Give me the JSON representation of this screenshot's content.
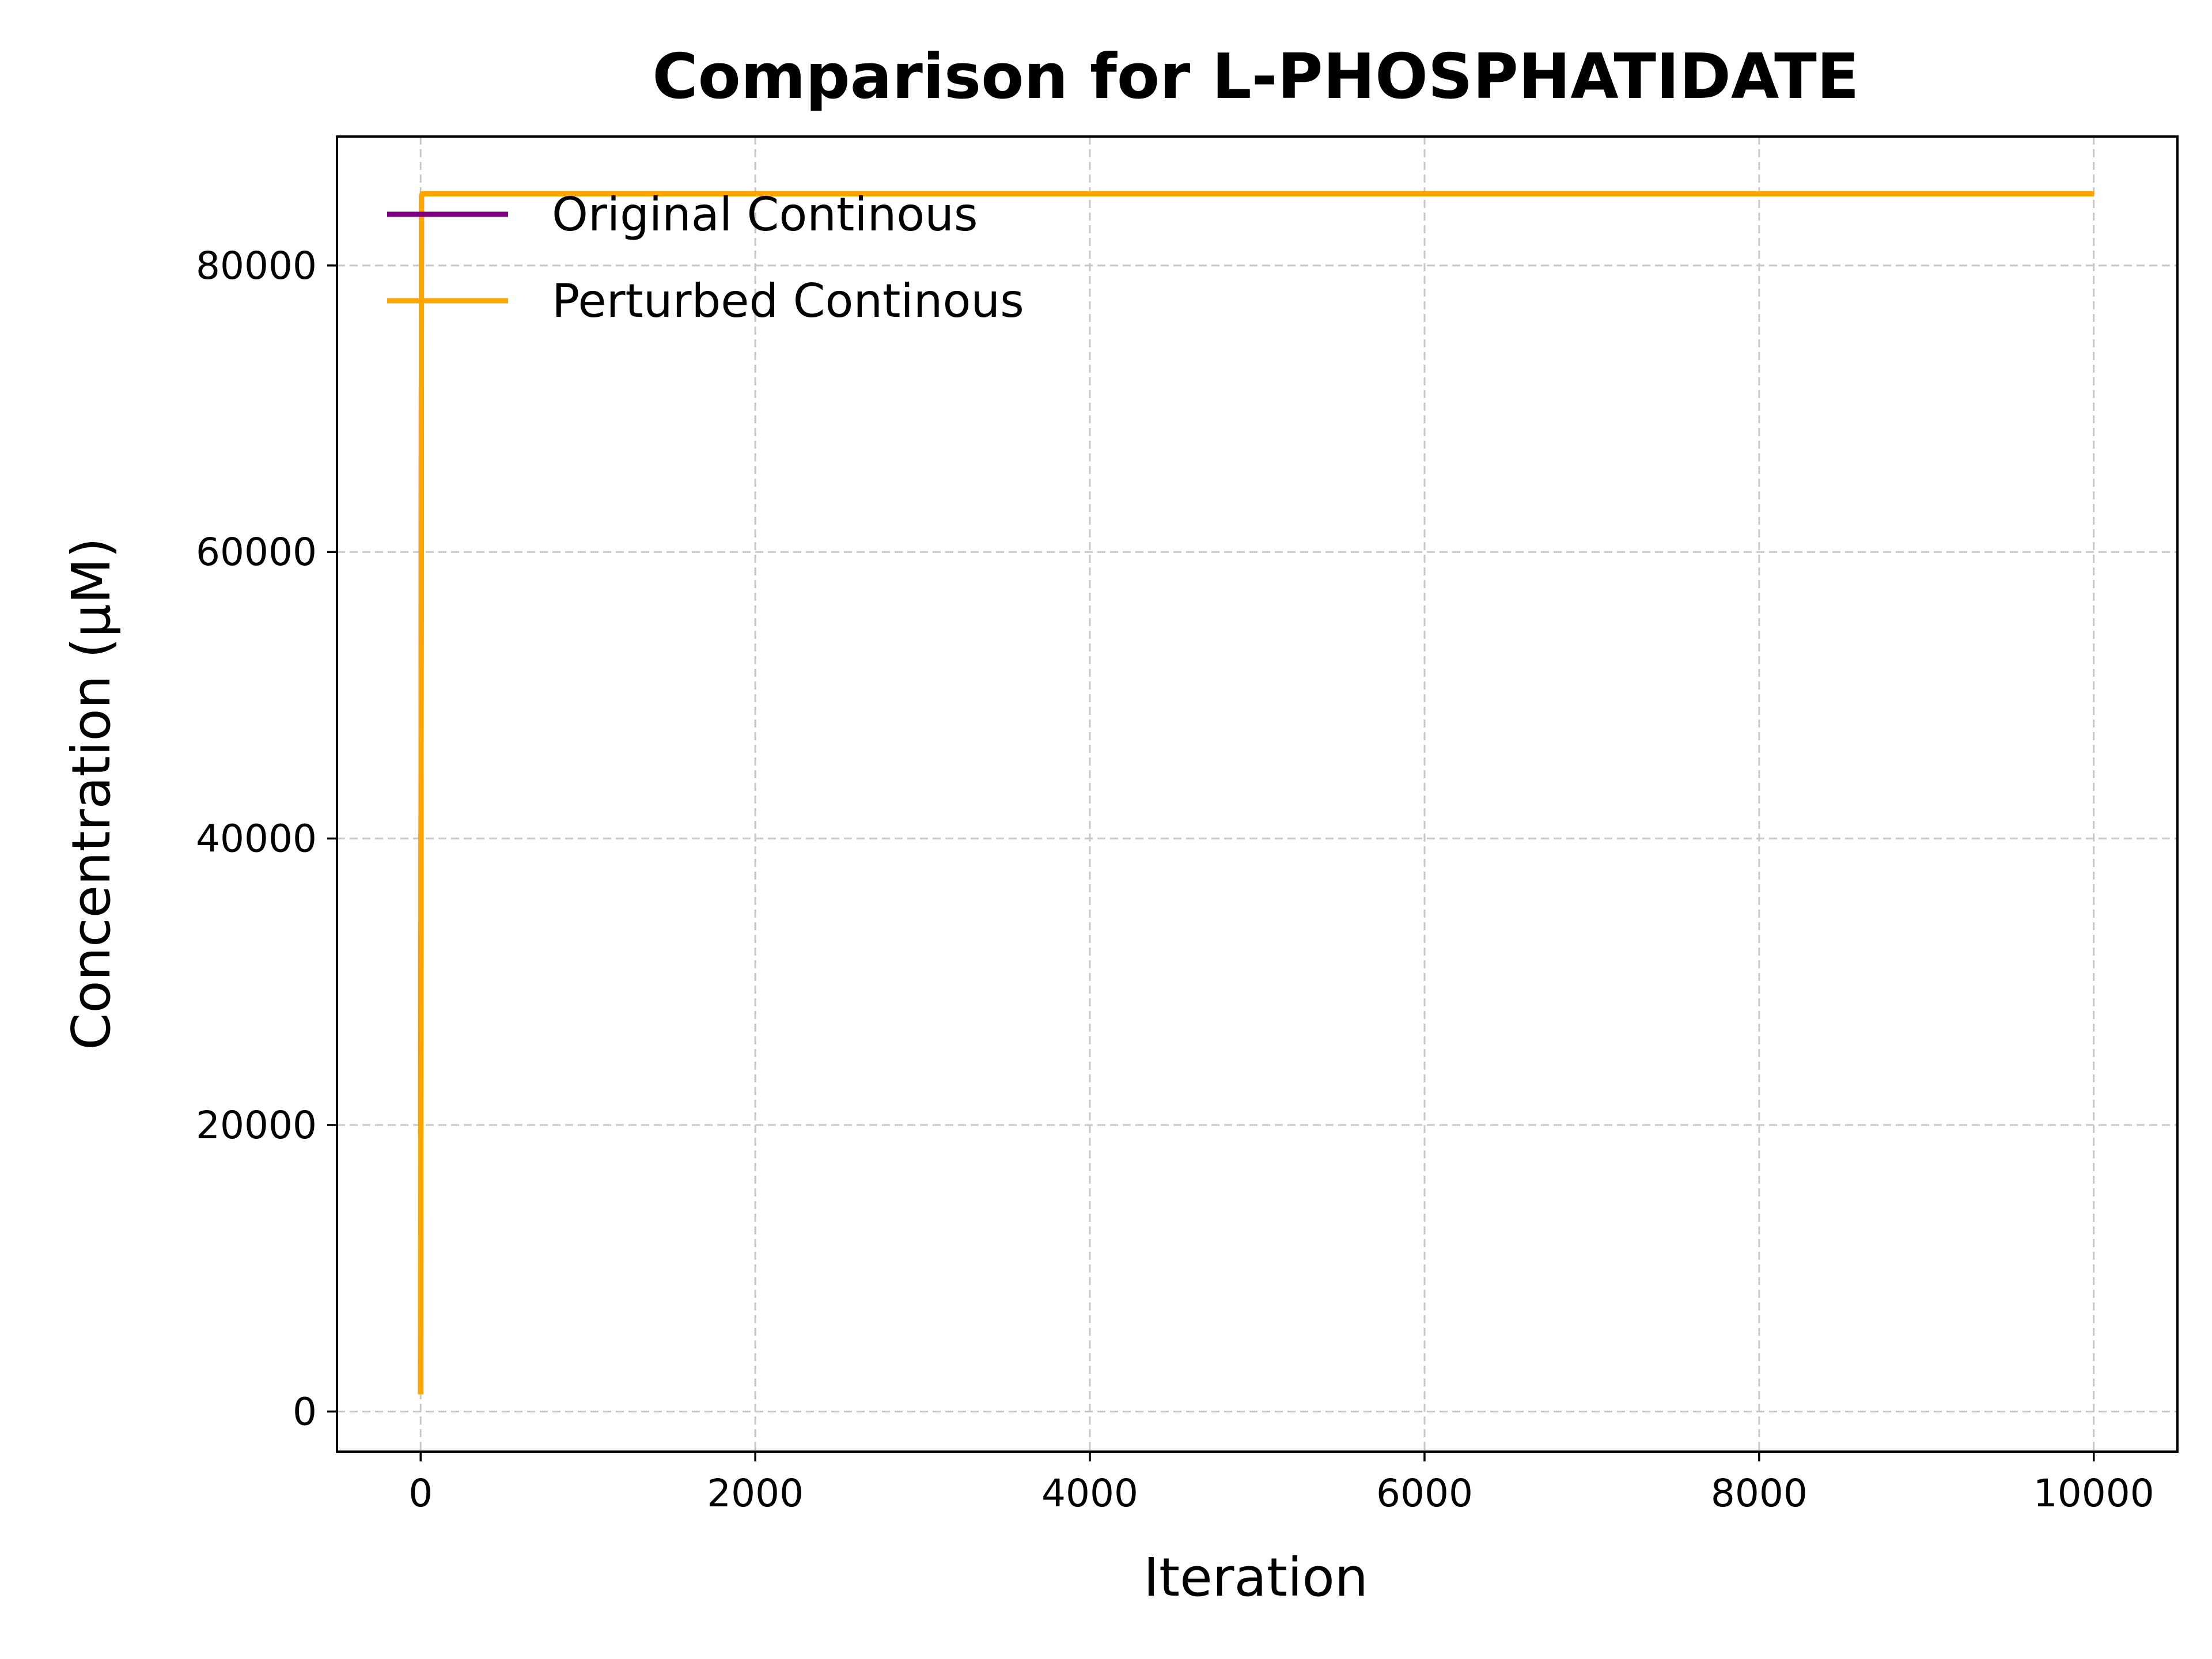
{
  "chart_data": {
    "type": "line",
    "title": "Comparison for L-PHOSPHATIDATE",
    "xlabel": "Iteration",
    "ylabel": "Concentration (μM)",
    "xlim": [
      -500,
      10500
    ],
    "ylim": [
      -2800,
      89000
    ],
    "xticks": [
      0,
      2000,
      4000,
      6000,
      8000,
      10000
    ],
    "xtick_labels": [
      "0",
      "2000",
      "4000",
      "6000",
      "8000",
      "10000"
    ],
    "yticks": [
      0,
      20000,
      40000,
      60000,
      80000
    ],
    "ytick_labels": [
      "0",
      "20000",
      "40000",
      "60000",
      "80000"
    ],
    "grid": true,
    "legend_position": "upper-left",
    "series": [
      {
        "name": "Original Continous",
        "color": "#800080",
        "x": [
          0,
          5,
          10,
          100,
          1000,
          5000,
          10000
        ],
        "y": [
          1200,
          84800,
          85000,
          85000,
          85000,
          85000,
          85000
        ]
      },
      {
        "name": "Perturbed Continous",
        "color": "#FFA500",
        "x": [
          0,
          5,
          10,
          100,
          1000,
          5000,
          10000
        ],
        "y": [
          1200,
          84800,
          85000,
          85000,
          85000,
          85000,
          85000
        ]
      }
    ]
  }
}
